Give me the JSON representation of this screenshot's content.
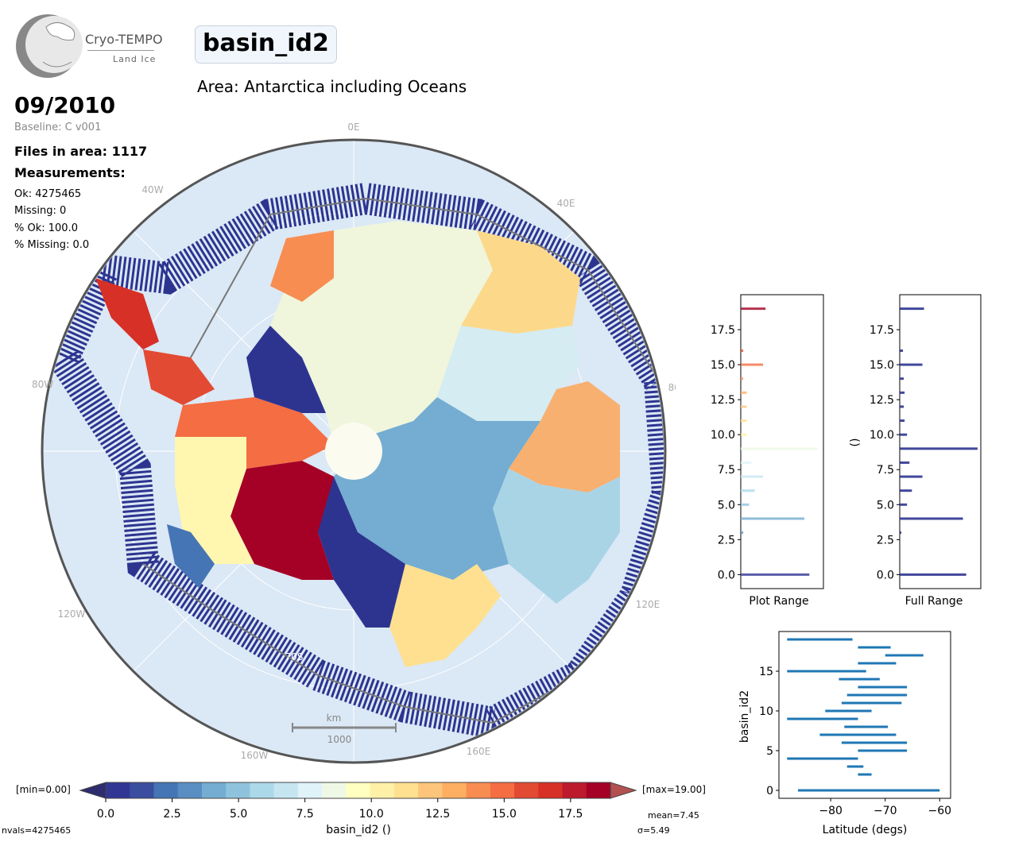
{
  "header": {
    "logo_line1": "Cryo-TEMPO",
    "logo_line2": "Land Ice",
    "title": "basin_id2",
    "area": "Area: Antarctica including Oceans",
    "date": "09/2010",
    "baseline": "Baseline: C v001",
    "files": "Files in area: 1117",
    "measurements_label": "Measurements:",
    "ok": "Ok: 4275465",
    "missing": "Missing: 0",
    "pct_ok": "% Ok: 100.0",
    "pct_missing": "% Missing: 0.0"
  },
  "map": {
    "lon_labels": [
      "0E",
      "40E",
      "80E",
      "120E",
      "160E",
      "160W",
      "120W",
      "80W",
      "40W"
    ],
    "lat_label": "70S",
    "scale_unit": "km",
    "scale_value": "1000"
  },
  "colorbar": {
    "min_label": "[min=0.00]",
    "max_label": "[max=19.00]",
    "label": "basin_id2 ()",
    "ticks": [
      "0.0",
      "2.5",
      "5.0",
      "7.5",
      "10.0",
      "12.5",
      "15.0",
      "17.5"
    ],
    "nvals": "nvals=4275465",
    "mean": "mean=7.45",
    "sigma": "σ=5.49",
    "colors": [
      "#313695",
      "#3a4d9f",
      "#4575b4",
      "#5a8ec2",
      "#74add1",
      "#8fc3dd",
      "#abd9e9",
      "#c5e6f0",
      "#e0f3f8",
      "#eff8e4",
      "#ffffbf",
      "#fff0a8",
      "#fee090",
      "#fdc57b",
      "#fdae61",
      "#f88d52",
      "#f46d43",
      "#e34a33",
      "#d73027",
      "#bd1a2e",
      "#a50026"
    ],
    "under_color": "#2c2c6e",
    "over_color": "#b35050"
  },
  "chart_data": [
    {
      "type": "bar",
      "title": "Plot Range",
      "orientation": "horizontal",
      "ylim": [
        -1,
        20
      ],
      "yticks": [
        "0.0",
        "2.5",
        "5.0",
        "7.5",
        "10.0",
        "12.5",
        "15.0",
        "17.5"
      ],
      "categories": [
        0,
        1,
        2,
        3,
        4,
        5,
        6,
        7,
        8,
        9,
        10,
        11,
        12,
        13,
        14,
        15,
        16,
        17,
        18,
        19
      ],
      "values": [
        0.83,
        0,
        0,
        0.03,
        0.77,
        0.1,
        0.17,
        0.27,
        0.13,
        0.93,
        0.07,
        0.07,
        0.07,
        0.07,
        0.03,
        0.27,
        0.03,
        0,
        0,
        0.3
      ]
    },
    {
      "type": "bar",
      "title": "Full Range",
      "xlabel": "",
      "ylabel": "()",
      "orientation": "horizontal",
      "ylim": [
        -1,
        20
      ],
      "yticks": [
        "0.0",
        "2.5",
        "5.0",
        "7.5",
        "10.0",
        "12.5",
        "15.0",
        "17.5"
      ],
      "categories": [
        0,
        1,
        2,
        3,
        4,
        5,
        6,
        7,
        8,
        9,
        10,
        11,
        12,
        13,
        14,
        15,
        16,
        17,
        18,
        19
      ],
      "values": [
        0.82,
        0,
        0,
        0.02,
        0.78,
        0.09,
        0.15,
        0.28,
        0.12,
        0.96,
        0.09,
        0.06,
        0.05,
        0.06,
        0.05,
        0.28,
        0.04,
        0,
        0,
        0.3
      ]
    },
    {
      "type": "range",
      "xlabel": "Latitude (degs)",
      "ylabel": "basin_id2",
      "xlim": [
        -89.5,
        -58
      ],
      "ylim": [
        -1,
        20
      ],
      "xticks": [
        -80,
        -70,
        -60
      ],
      "yticks": [
        0,
        5,
        10,
        15
      ],
      "series": [
        {
          "y": 0,
          "lat_min": -86,
          "lat_max": -60
        },
        {
          "y": 2,
          "lat_min": -75,
          "lat_max": -72.5
        },
        {
          "y": 3,
          "lat_min": -77,
          "lat_max": -74
        },
        {
          "y": 4,
          "lat_min": -88,
          "lat_max": -75
        },
        {
          "y": 5,
          "lat_min": -75,
          "lat_max": -66
        },
        {
          "y": 6,
          "lat_min": -78,
          "lat_max": -66
        },
        {
          "y": 7,
          "lat_min": -82,
          "lat_max": -68
        },
        {
          "y": 8,
          "lat_min": -77.5,
          "lat_max": -69.5
        },
        {
          "y": 9,
          "lat_min": -88,
          "lat_max": -75
        },
        {
          "y": 10,
          "lat_min": -81,
          "lat_max": -72.5
        },
        {
          "y": 11,
          "lat_min": -78,
          "lat_max": -67
        },
        {
          "y": 12,
          "lat_min": -77,
          "lat_max": -66
        },
        {
          "y": 13,
          "lat_min": -75,
          "lat_max": -66
        },
        {
          "y": 14,
          "lat_min": -78.5,
          "lat_max": -71
        },
        {
          "y": 15,
          "lat_min": -88,
          "lat_max": -73.5
        },
        {
          "y": 16,
          "lat_min": -75,
          "lat_max": -68
        },
        {
          "y": 17,
          "lat_min": -70,
          "lat_max": -63
        },
        {
          "y": 18,
          "lat_min": -75,
          "lat_max": -69
        },
        {
          "y": 19,
          "lat_min": -88,
          "lat_max": -76
        }
      ]
    }
  ]
}
